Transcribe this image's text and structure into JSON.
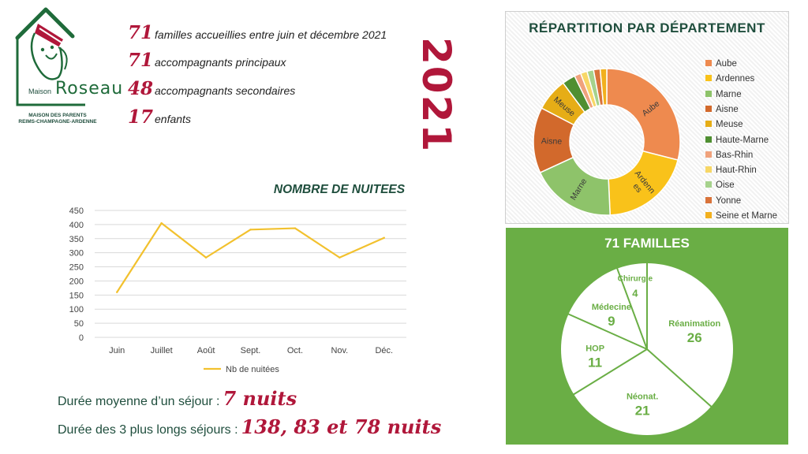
{
  "logo": {
    "maison": "Maison",
    "name": "Roseau",
    "subtitle_line1": "MAISON DES PARENTS",
    "subtitle_line2": "REIMS-CHAMPAGNE-ARDENNE"
  },
  "stats": [
    {
      "number": "71",
      "label": "familles accueillies entre juin et décembre 2021"
    },
    {
      "number": "71",
      "label": "accompagnants principaux"
    },
    {
      "number": "48",
      "label": "accompagnants secondaires"
    },
    {
      "number": "17",
      "label": "enfants"
    }
  ],
  "year": "2021",
  "summary": {
    "avg_label": "Durée moyenne d’un séjour :",
    "avg_value": "7 nuits",
    "longest_label": "Durée des 3 plus longs séjours :",
    "longest_value": "138, 83 et 78 nuits"
  },
  "colors": {
    "accent": "#b0173a",
    "title_green": "#1f4e3d",
    "panel_green": "#6aae45",
    "line": "#f2c12e"
  },
  "chart_data": [
    {
      "type": "line",
      "title": "NOMBRE DE NUITEES",
      "categories": [
        "Juin",
        "Juillet",
        "Août",
        "Sept.",
        "Oct.",
        "Nov.",
        "Déc."
      ],
      "series": [
        {
          "name": "Nb de nuitées",
          "values": [
            160,
            405,
            283,
            382,
            387,
            283,
            353
          ]
        }
      ],
      "ylim": [
        0,
        450
      ],
      "yticks": [
        0,
        50,
        100,
        150,
        200,
        250,
        300,
        350,
        400,
        450
      ],
      "grid": true,
      "legend": "bottom"
    },
    {
      "type": "pie",
      "variant": "donut",
      "title": "RÉPARTITION PAR DÉPARTEMENT",
      "legend": "right",
      "labels": [
        "Aube",
        "Ardennes",
        "Marne",
        "Aisne",
        "Meuse",
        "Haute-Marne",
        "Bas-Rhin",
        "Haut-Rhin",
        "Oise",
        "Yonne",
        "Seine et Marne"
      ],
      "values": [
        20,
        14,
        13,
        10,
        5,
        2,
        1,
        1,
        1,
        1,
        1
      ],
      "slice_labels": [
        "Aube",
        "Ardenn\nes",
        "Marne",
        "Aisne",
        "Meuse",
        "",
        "",
        "",
        "",
        "",
        ""
      ],
      "colors": [
        "#ee8a4f",
        "#f9c21a",
        "#8ec36a",
        "#d2692c",
        "#e6ad16",
        "#4f8f31",
        "#f0a27c",
        "#f7d766",
        "#a6d28c",
        "#d9733a",
        "#f2b01e"
      ]
    },
    {
      "type": "pie",
      "title": "71 FAMILLES",
      "labels": [
        "Réanimation",
        "Néonat.",
        "HOP",
        "Médecine",
        "Chirurgie"
      ],
      "values": [
        26,
        21,
        11,
        9,
        4
      ]
    }
  ]
}
